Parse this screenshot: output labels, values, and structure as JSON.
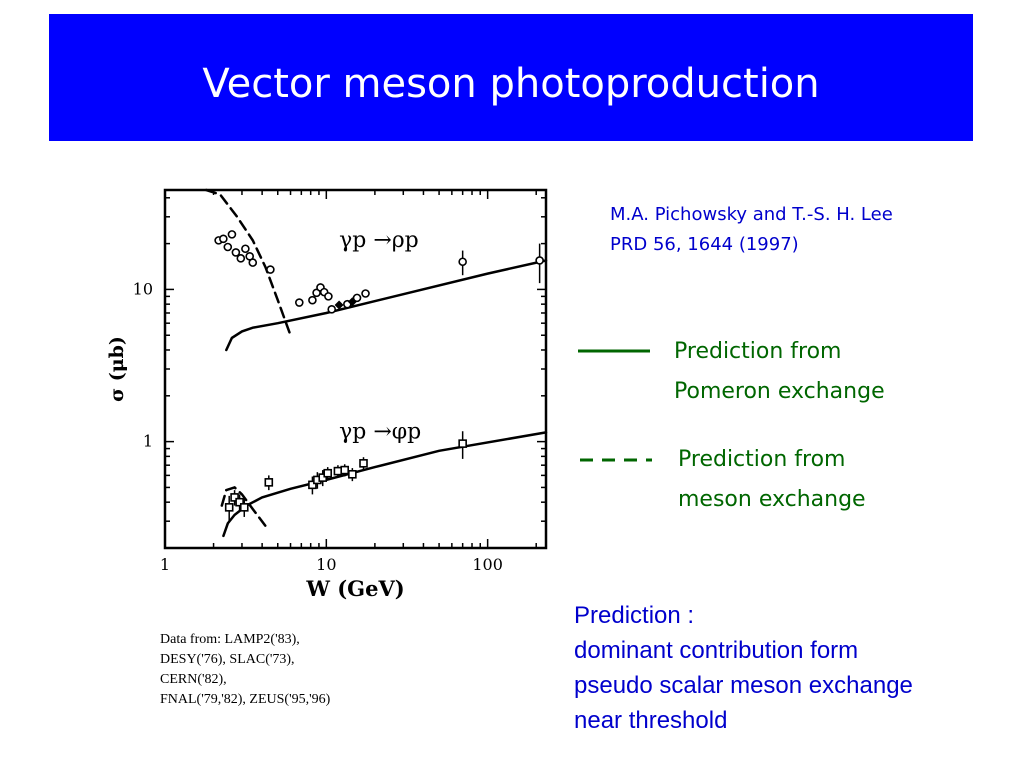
{
  "slide": {
    "title": "Vector meson photoproduction"
  },
  "citation": {
    "line1": "M.A. Pichowsky and T.-S. H. Lee",
    "line2": "PRD 56, 1644 (1997)"
  },
  "legend": {
    "pomeron": {
      "line1": "Prediction from",
      "line2": "Pomeron exchange",
      "style": "solid"
    },
    "meson": {
      "line1": "Prediction from",
      "line2": "meson exchange",
      "style": "dashed"
    }
  },
  "data_sources": {
    "lines": [
      "Data from: LAMP2('83),",
      "DESY('76), SLAC('73),",
      "CERN('82),",
      "FNAL('79,'82), ZEUS('95,'96)"
    ]
  },
  "note": {
    "lines": [
      "Prediction :",
      "dominant contribution form",
      "pseudo scalar meson exchange",
      "near threshold"
    ]
  },
  "colors": {
    "title_bar": "#0000ff",
    "legend_text": "#006600",
    "note_text": "#0000cc"
  },
  "chart_data": {
    "type": "scatter",
    "xlabel": "W (GeV)",
    "ylabel": "σ (μb)",
    "x_scale": "log",
    "y_scale": "log",
    "xlim": [
      1,
      230
    ],
    "ylim": [
      0.2,
      45
    ],
    "x_ticks": [
      {
        "value": 1,
        "label": "1"
      },
      {
        "value": 10,
        "label": "10"
      },
      {
        "value": 100,
        "label": "100"
      }
    ],
    "y_ticks": [
      {
        "value": 1,
        "label": "1"
      },
      {
        "value": 10,
        "label": "10"
      }
    ],
    "annotations": [
      {
        "text": "γp →ρp",
        "x": 12,
        "y": 19
      },
      {
        "text": "γp →φp",
        "x": 12,
        "y": 1.05
      }
    ],
    "series": [
      {
        "marker": "circle",
        "points": [
          {
            "x": 2.15,
            "y": 21,
            "err": 0
          },
          {
            "x": 2.3,
            "y": 21.5,
            "err": 0
          },
          {
            "x": 2.45,
            "y": 19,
            "err": 0
          },
          {
            "x": 2.6,
            "y": 23,
            "err": 0
          },
          {
            "x": 2.75,
            "y": 17.5,
            "err": 0
          },
          {
            "x": 2.95,
            "y": 16,
            "err": 0
          },
          {
            "x": 3.15,
            "y": 18.5,
            "err": 0
          },
          {
            "x": 3.35,
            "y": 16.5,
            "err": 0
          },
          {
            "x": 3.5,
            "y": 15,
            "err": 0
          },
          {
            "x": 4.5,
            "y": 13.5,
            "err": 0
          },
          {
            "x": 6.8,
            "y": 8.2,
            "err": 0
          },
          {
            "x": 8.2,
            "y": 8.5,
            "err": 0
          },
          {
            "x": 8.7,
            "y": 9.5,
            "err": 0
          },
          {
            "x": 9.2,
            "y": 10.3,
            "err": 0
          },
          {
            "x": 9.7,
            "y": 9.6,
            "err": 0
          },
          {
            "x": 10.3,
            "y": 9.0,
            "err": 0
          },
          {
            "x": 10.8,
            "y": 7.4,
            "err": 0
          },
          {
            "x": 13.5,
            "y": 8.0,
            "err": 0
          },
          {
            "x": 15.5,
            "y": 8.8,
            "err": 0
          },
          {
            "x": 17.5,
            "y": 9.4,
            "err": 0
          },
          {
            "x": 70,
            "y": 15.2,
            "err": 2.8
          },
          {
            "x": 210,
            "y": 15.5,
            "err": 4.5
          }
        ]
      },
      {
        "marker": "diamond",
        "points": [
          {
            "x": 12.0,
            "y": 7.9,
            "err": 0
          },
          {
            "x": 14.5,
            "y": 8.3,
            "err": 0
          }
        ]
      },
      {
        "marker": "square",
        "points": [
          {
            "x": 2.5,
            "y": 0.37,
            "err": 0.07
          },
          {
            "x": 2.7,
            "y": 0.43,
            "err": 0.05
          },
          {
            "x": 2.9,
            "y": 0.4,
            "err": 0.05
          },
          {
            "x": 3.1,
            "y": 0.37,
            "err": 0.05
          },
          {
            "x": 4.4,
            "y": 0.54,
            "err": 0.06
          },
          {
            "x": 8.2,
            "y": 0.52,
            "err": 0.07
          },
          {
            "x": 8.8,
            "y": 0.56,
            "err": 0.07
          },
          {
            "x": 9.5,
            "y": 0.58,
            "err": 0.07
          },
          {
            "x": 10.2,
            "y": 0.62,
            "err": 0.06
          },
          {
            "x": 11.8,
            "y": 0.64,
            "err": 0.06
          },
          {
            "x": 13.0,
            "y": 0.65,
            "err": 0.06
          },
          {
            "x": 14.5,
            "y": 0.61,
            "err": 0.06
          },
          {
            "x": 17.0,
            "y": 0.72,
            "err": 0.07
          },
          {
            "x": 70,
            "y": 0.97,
            "err": 0.2
          }
        ]
      }
    ],
    "curves": [
      {
        "name": "Prediction from Pomeron exchange",
        "style": "solid",
        "points": [
          [
            2.4,
            4.0
          ],
          [
            2.6,
            4.8
          ],
          [
            3.0,
            5.3
          ],
          [
            3.5,
            5.6
          ],
          [
            5,
            6.0
          ],
          [
            10,
            7.0
          ],
          [
            30,
            9.3
          ],
          [
            100,
            12.7
          ],
          [
            230,
            15.5
          ]
        ]
      },
      {
        "name": "Prediction from meson exchange",
        "style": "dashed",
        "points": [
          [
            1.8,
            45
          ],
          [
            2.2,
            42
          ],
          [
            2.8,
            30
          ],
          [
            3.5,
            21
          ],
          [
            4.2,
            14
          ],
          [
            5.0,
            8.5
          ],
          [
            6.0,
            5.0
          ]
        ]
      },
      {
        "name": "Prediction from Pomeron exchange",
        "style": "solid",
        "points": [
          [
            2.3,
            0.24
          ],
          [
            2.45,
            0.29
          ],
          [
            2.7,
            0.33
          ],
          [
            3.2,
            0.38
          ],
          [
            4,
            0.43
          ],
          [
            6,
            0.49
          ],
          [
            10,
            0.56
          ],
          [
            20,
            0.68
          ],
          [
            50,
            0.87
          ],
          [
            230,
            1.15
          ]
        ]
      },
      {
        "name": "Prediction from meson exchange",
        "style": "dashed",
        "points": [
          [
            2.25,
            0.38
          ],
          [
            2.4,
            0.48
          ],
          [
            2.7,
            0.5
          ],
          [
            3.0,
            0.45
          ],
          [
            3.5,
            0.36
          ],
          [
            4.3,
            0.27
          ]
        ]
      }
    ]
  }
}
